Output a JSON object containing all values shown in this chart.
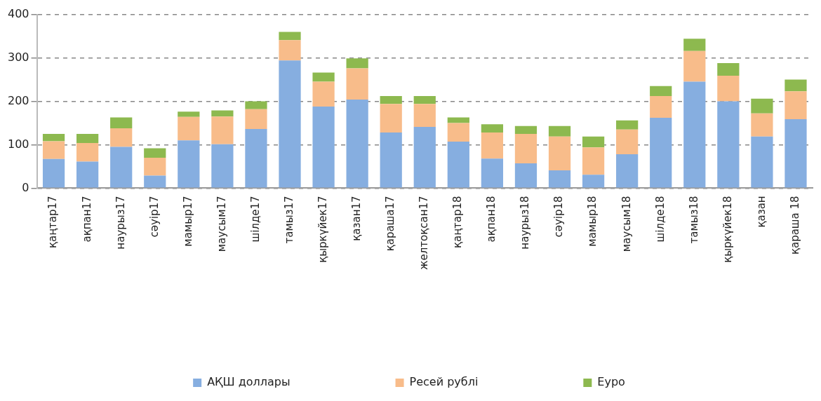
{
  "chart_data": {
    "type": "bar",
    "stacked": true,
    "categories": [
      "қаңтар17",
      "ақпан17",
      "наурыз17",
      "сәуір17",
      "мамыр17",
      "маусым17",
      "шілде17",
      "тамыз17",
      "қыркүйек17",
      "қазан17",
      "қараша17",
      "желтоқсан17",
      "қаңтар18",
      "ақпан18",
      "наурыз18",
      "сәуір18",
      "мамыр18",
      "маусым18",
      "шілде18",
      "тамыз18",
      "қыркүйек18",
      "қазан",
      "қараша 18"
    ],
    "series": [
      {
        "name": "АҚШ доллары",
        "color": "#86aee0",
        "values": [
          67,
          61,
          95,
          29,
          110,
          101,
          136,
          294,
          188,
          204,
          128,
          141,
          107,
          68,
          57,
          41,
          31,
          78,
          162,
          245,
          200,
          119,
          159
        ]
      },
      {
        "name": "Ресей рублі",
        "color": "#f8bc8a",
        "values": [
          41,
          43,
          43,
          41,
          54,
          64,
          46,
          47,
          57,
          72,
          66,
          53,
          43,
          60,
          68,
          78,
          63,
          57,
          50,
          71,
          59,
          53,
          64
        ]
      },
      {
        "name": "Еуро",
        "color": "#8db94f",
        "values": [
          17,
          21,
          25,
          22,
          12,
          14,
          18,
          19,
          21,
          23,
          18,
          18,
          13,
          19,
          18,
          24,
          25,
          21,
          23,
          28,
          29,
          34,
          27
        ]
      }
    ],
    "ylim": [
      0,
      400
    ],
    "yticks": [
      0,
      100,
      200,
      300,
      400
    ],
    "grid": "y",
    "legend": "bottom"
  }
}
